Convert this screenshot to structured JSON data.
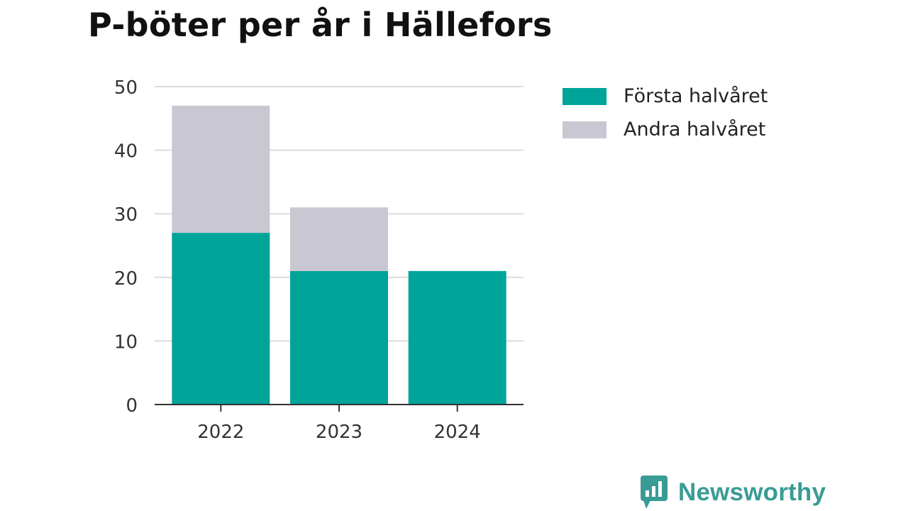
{
  "chart_data": {
    "type": "bar",
    "stacked": true,
    "title": "P-böter per år i Hällefors",
    "xlabel": "",
    "ylabel": "",
    "categories": [
      "2022",
      "2023",
      "2024"
    ],
    "series": [
      {
        "name": "Första halvåret",
        "color": "#00a499",
        "values": [
          27,
          21,
          21
        ]
      },
      {
        "name": "Andra halvåret",
        "color": "#c8c7d2",
        "values": [
          20,
          10,
          0
        ]
      }
    ],
    "ylim": [
      0,
      50
    ],
    "yticks": [
      0,
      10,
      20,
      30,
      40,
      50
    ],
    "grid": true,
    "legend_position": "right"
  },
  "brand": {
    "name": "Newsworthy",
    "icon": "bar-chart-speech-bubble-icon",
    "color": "#3a9b95"
  }
}
